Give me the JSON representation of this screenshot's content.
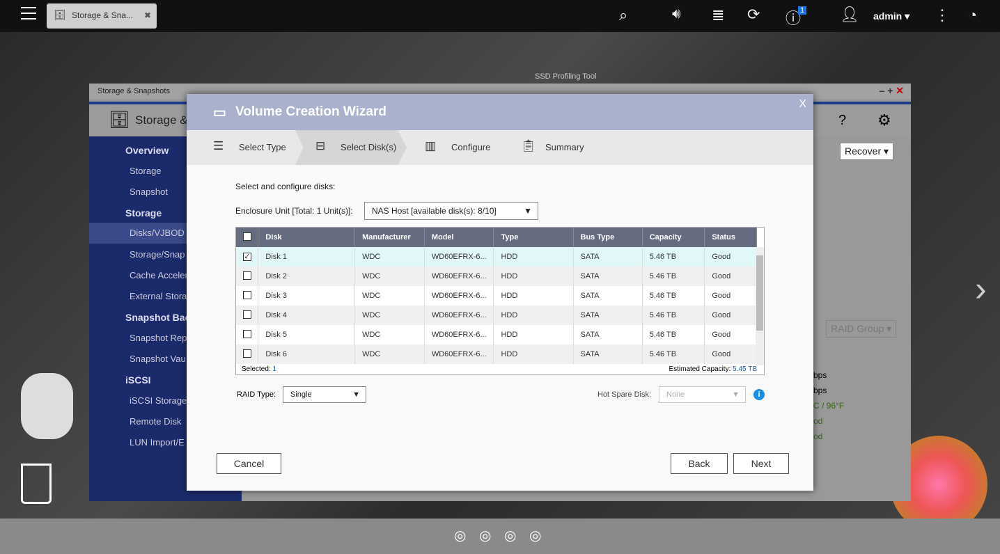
{
  "topbar": {
    "tab_title": "Storage & Sna...",
    "notif_count": "1",
    "user": "admin"
  },
  "background": {
    "window_title": "Storage & Snapshots",
    "app_title": "Storage &",
    "desktop_label": "SSD Profiling Tool",
    "recover": "Recover",
    "raid_group": "RAID Group",
    "stats": [
      "bps",
      "bps",
      "C / 96°F",
      "od",
      "od"
    ],
    "sidebar": [
      {
        "label": "Overview",
        "type": "section"
      },
      {
        "label": "Storage"
      },
      {
        "label": "Snapshot"
      },
      {
        "label": "Storage",
        "type": "section"
      },
      {
        "label": "Disks/VJBOD",
        "active": true
      },
      {
        "label": "Storage/Snap"
      },
      {
        "label": "Cache Acceler"
      },
      {
        "label": "External Stora"
      },
      {
        "label": "Snapshot Bac",
        "type": "section"
      },
      {
        "label": "Snapshot Rep"
      },
      {
        "label": "Snapshot Vau"
      },
      {
        "label": "iSCSI",
        "type": "section"
      },
      {
        "label": "iSCSI Storage"
      },
      {
        "label": "Remote Disk"
      },
      {
        "label": "LUN Import/E"
      }
    ]
  },
  "wizard": {
    "title": "Volume Creation Wizard",
    "close": "X",
    "steps": [
      "Select Type",
      "Select Disk(s)",
      "Configure",
      "Summary"
    ],
    "active_step": 1,
    "instruction": "Select and configure disks:",
    "enclosure_label": "Enclosure Unit [Total: 1 Unit(s)]:",
    "enclosure_value": "NAS Host [available disk(s): 8/10]",
    "columns": [
      "Disk",
      "Manufacturer",
      "Model",
      "Type",
      "Bus Type",
      "Capacity",
      "Status"
    ],
    "rows": [
      {
        "checked": true,
        "cells": [
          "Disk 1",
          "WDC",
          "WD60EFRX-6...",
          "HDD",
          "SATA",
          "5.46 TB",
          "Good"
        ]
      },
      {
        "checked": false,
        "cells": [
          "Disk 2",
          "WDC",
          "WD60EFRX-6...",
          "HDD",
          "SATA",
          "5.46 TB",
          "Good"
        ]
      },
      {
        "checked": false,
        "cells": [
          "Disk 3",
          "WDC",
          "WD60EFRX-6...",
          "HDD",
          "SATA",
          "5.46 TB",
          "Good"
        ]
      },
      {
        "checked": false,
        "cells": [
          "Disk 4",
          "WDC",
          "WD60EFRX-6...",
          "HDD",
          "SATA",
          "5.46 TB",
          "Good"
        ]
      },
      {
        "checked": false,
        "cells": [
          "Disk 5",
          "WDC",
          "WD60EFRX-6...",
          "HDD",
          "SATA",
          "5.46 TB",
          "Good"
        ]
      },
      {
        "checked": false,
        "cells": [
          "Disk 6",
          "WDC",
          "WD60EFRX-6...",
          "HDD",
          "SATA",
          "5.46 TB",
          "Good"
        ]
      }
    ],
    "selected_label": "Selected:",
    "selected_count": "1",
    "capacity_label": "Estimated Capacity:",
    "capacity_value": "5.45 TB",
    "raid_label": "RAID Type:",
    "raid_value": "Single",
    "hotspare_label": "Hot Spare Disk:",
    "hotspare_value": "None",
    "cancel": "Cancel",
    "back": "Back",
    "next": "Next"
  },
  "colors": {
    "accent": "#1a5fb4",
    "header": "#a9b1cc",
    "table_header": "#656c80",
    "selected_row": "#e2f8f8"
  }
}
